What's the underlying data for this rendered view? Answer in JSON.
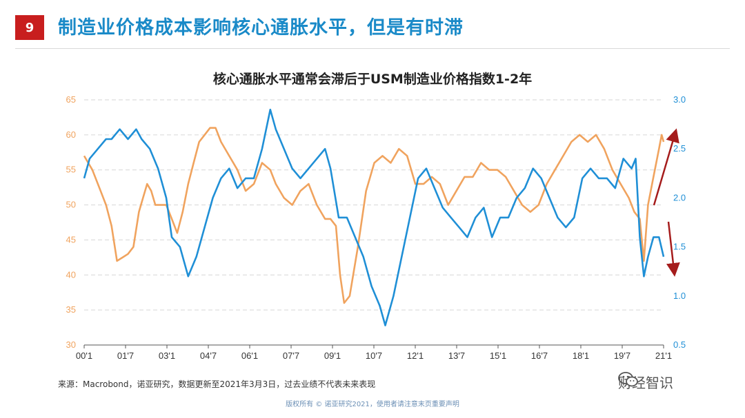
{
  "page": {
    "badge": "9",
    "title": "制造业价格成本影响核心通胀水平，但是有时滞",
    "source": "来源：Macrobond，诺亚研究，数据更新至2021年3月3日，过去业绩不代表未来表现",
    "copyright": "版权所有 © 诺亚研究2021，使用者请注意末页重要声明",
    "watermark": "财经智识"
  },
  "colors": {
    "accent": "#1a8ac8",
    "orange": "#f0a35e",
    "blue": "#1f8fd6",
    "red": "#a51c1c",
    "badge": "#c81e1e"
  },
  "chart_data": {
    "type": "line",
    "title": "核心通胀水平通常会滞后于USM制造业价格指数1-2年",
    "xlabel": "",
    "ylabel_left": "",
    "ylabel_right": "",
    "x_ticks": [
      "00'1",
      "01'7",
      "03'1",
      "04'7",
      "06'1",
      "07'7",
      "09'1",
      "10'7",
      "12'1",
      "13'7",
      "15'1",
      "16'7",
      "18'1",
      "19'7",
      "21'1"
    ],
    "x_range": [
      2000.0,
      2021.17
    ],
    "ylim_left": [
      30,
      65
    ],
    "ylim_right": [
      0.5,
      3.0
    ],
    "y_ticks_left": [
      30,
      35,
      40,
      45,
      50,
      55,
      60,
      65
    ],
    "y_ticks_right": [
      "0.5",
      "1.0",
      "1.5",
      "2.0",
      "2.5",
      "3.0"
    ],
    "grid": "horizontal dashed",
    "legend": "none",
    "series": [
      {
        "axis": "left",
        "color": "orange",
        "points": [
          [
            2000.0,
            57
          ],
          [
            2000.3,
            55
          ],
          [
            2000.6,
            52
          ],
          [
            2000.8,
            50
          ],
          [
            2001.0,
            47
          ],
          [
            2001.2,
            42
          ],
          [
            2001.4,
            42.5
          ],
          [
            2001.6,
            43
          ],
          [
            2001.8,
            44
          ],
          [
            2002.0,
            49
          ],
          [
            2002.15,
            51
          ],
          [
            2002.3,
            53
          ],
          [
            2002.45,
            52
          ],
          [
            2002.6,
            50
          ],
          [
            2002.8,
            50
          ],
          [
            2003.0,
            50
          ],
          [
            2003.2,
            48
          ],
          [
            2003.4,
            46
          ],
          [
            2003.6,
            49
          ],
          [
            2003.8,
            53
          ],
          [
            2004.0,
            56
          ],
          [
            2004.2,
            59
          ],
          [
            2004.4,
            60
          ],
          [
            2004.6,
            61
          ],
          [
            2004.8,
            61
          ],
          [
            2005.0,
            59
          ],
          [
            2005.3,
            57
          ],
          [
            2005.6,
            55
          ],
          [
            2005.9,
            52
          ],
          [
            2006.2,
            53
          ],
          [
            2006.5,
            56
          ],
          [
            2006.8,
            55
          ],
          [
            2007.0,
            53
          ],
          [
            2007.3,
            51
          ],
          [
            2007.6,
            50
          ],
          [
            2007.9,
            52
          ],
          [
            2008.2,
            53
          ],
          [
            2008.5,
            50
          ],
          [
            2008.8,
            48
          ],
          [
            2009.0,
            48
          ],
          [
            2009.2,
            47
          ],
          [
            2009.35,
            40
          ],
          [
            2009.5,
            36
          ],
          [
            2009.7,
            37
          ],
          [
            2010.0,
            44
          ],
          [
            2010.3,
            52
          ],
          [
            2010.6,
            56
          ],
          [
            2010.9,
            57
          ],
          [
            2011.2,
            56
          ],
          [
            2011.5,
            58
          ],
          [
            2011.8,
            57
          ],
          [
            2012.1,
            53
          ],
          [
            2012.4,
            53
          ],
          [
            2012.7,
            54
          ],
          [
            2013.0,
            53
          ],
          [
            2013.3,
            50
          ],
          [
            2013.6,
            52
          ],
          [
            2013.9,
            54
          ],
          [
            2014.2,
            54
          ],
          [
            2014.5,
            56
          ],
          [
            2014.8,
            55
          ],
          [
            2015.1,
            55
          ],
          [
            2015.4,
            54
          ],
          [
            2015.7,
            52
          ],
          [
            2016.0,
            50
          ],
          [
            2016.3,
            49
          ],
          [
            2016.6,
            50
          ],
          [
            2016.9,
            53
          ],
          [
            2017.2,
            55
          ],
          [
            2017.5,
            57
          ],
          [
            2017.8,
            59
          ],
          [
            2018.1,
            60
          ],
          [
            2018.4,
            59
          ],
          [
            2018.7,
            60
          ],
          [
            2019.0,
            58
          ],
          [
            2019.3,
            55
          ],
          [
            2019.6,
            53
          ],
          [
            2019.9,
            51
          ],
          [
            2020.1,
            49
          ],
          [
            2020.3,
            48
          ],
          [
            2020.45,
            42
          ],
          [
            2020.6,
            50
          ],
          [
            2020.8,
            54
          ],
          [
            2021.0,
            58
          ],
          [
            2021.1,
            60
          ],
          [
            2021.17,
            59
          ]
        ]
      },
      {
        "axis": "right",
        "color": "blue",
        "points": [
          [
            2000.0,
            2.2
          ],
          [
            2000.2,
            2.4
          ],
          [
            2000.5,
            2.5
          ],
          [
            2000.8,
            2.6
          ],
          [
            2001.0,
            2.6
          ],
          [
            2001.3,
            2.7
          ],
          [
            2001.6,
            2.6
          ],
          [
            2001.9,
            2.7
          ],
          [
            2002.1,
            2.6
          ],
          [
            2002.4,
            2.5
          ],
          [
            2002.7,
            2.3
          ],
          [
            2003.0,
            2.0
          ],
          [
            2003.2,
            1.6
          ],
          [
            2003.5,
            1.5
          ],
          [
            2003.8,
            1.2
          ],
          [
            2004.1,
            1.4
          ],
          [
            2004.4,
            1.7
          ],
          [
            2004.7,
            2.0
          ],
          [
            2005.0,
            2.2
          ],
          [
            2005.3,
            2.3
          ],
          [
            2005.6,
            2.1
          ],
          [
            2005.9,
            2.2
          ],
          [
            2006.2,
            2.2
          ],
          [
            2006.5,
            2.5
          ],
          [
            2006.8,
            2.9
          ],
          [
            2007.0,
            2.7
          ],
          [
            2007.3,
            2.5
          ],
          [
            2007.6,
            2.3
          ],
          [
            2007.9,
            2.2
          ],
          [
            2008.2,
            2.3
          ],
          [
            2008.5,
            2.4
          ],
          [
            2008.8,
            2.5
          ],
          [
            2009.0,
            2.3
          ],
          [
            2009.3,
            1.8
          ],
          [
            2009.6,
            1.8
          ],
          [
            2009.9,
            1.6
          ],
          [
            2010.2,
            1.4
          ],
          [
            2010.5,
            1.1
          ],
          [
            2010.8,
            0.9
          ],
          [
            2011.0,
            0.7
          ],
          [
            2011.3,
            1.0
          ],
          [
            2011.6,
            1.4
          ],
          [
            2011.9,
            1.8
          ],
          [
            2012.2,
            2.2
          ],
          [
            2012.5,
            2.3
          ],
          [
            2012.8,
            2.1
          ],
          [
            2013.1,
            1.9
          ],
          [
            2013.4,
            1.8
          ],
          [
            2013.7,
            1.7
          ],
          [
            2014.0,
            1.6
          ],
          [
            2014.3,
            1.8
          ],
          [
            2014.6,
            1.9
          ],
          [
            2014.9,
            1.6
          ],
          [
            2015.2,
            1.8
          ],
          [
            2015.5,
            1.8
          ],
          [
            2015.8,
            2.0
          ],
          [
            2016.1,
            2.1
          ],
          [
            2016.4,
            2.3
          ],
          [
            2016.7,
            2.2
          ],
          [
            2017.0,
            2.0
          ],
          [
            2017.3,
            1.8
          ],
          [
            2017.6,
            1.7
          ],
          [
            2017.9,
            1.8
          ],
          [
            2018.2,
            2.2
          ],
          [
            2018.5,
            2.3
          ],
          [
            2018.8,
            2.2
          ],
          [
            2019.1,
            2.2
          ],
          [
            2019.4,
            2.1
          ],
          [
            2019.7,
            2.4
          ],
          [
            2020.0,
            2.3
          ],
          [
            2020.15,
            2.4
          ],
          [
            2020.3,
            1.6
          ],
          [
            2020.45,
            1.2
          ],
          [
            2020.6,
            1.4
          ],
          [
            2020.8,
            1.6
          ],
          [
            2021.0,
            1.6
          ],
          [
            2021.17,
            1.4
          ]
        ]
      }
    ],
    "annotations": [
      {
        "type": "arrow",
        "direction": "up",
        "color": "red"
      },
      {
        "type": "arrow",
        "direction": "down",
        "color": "red"
      }
    ]
  }
}
